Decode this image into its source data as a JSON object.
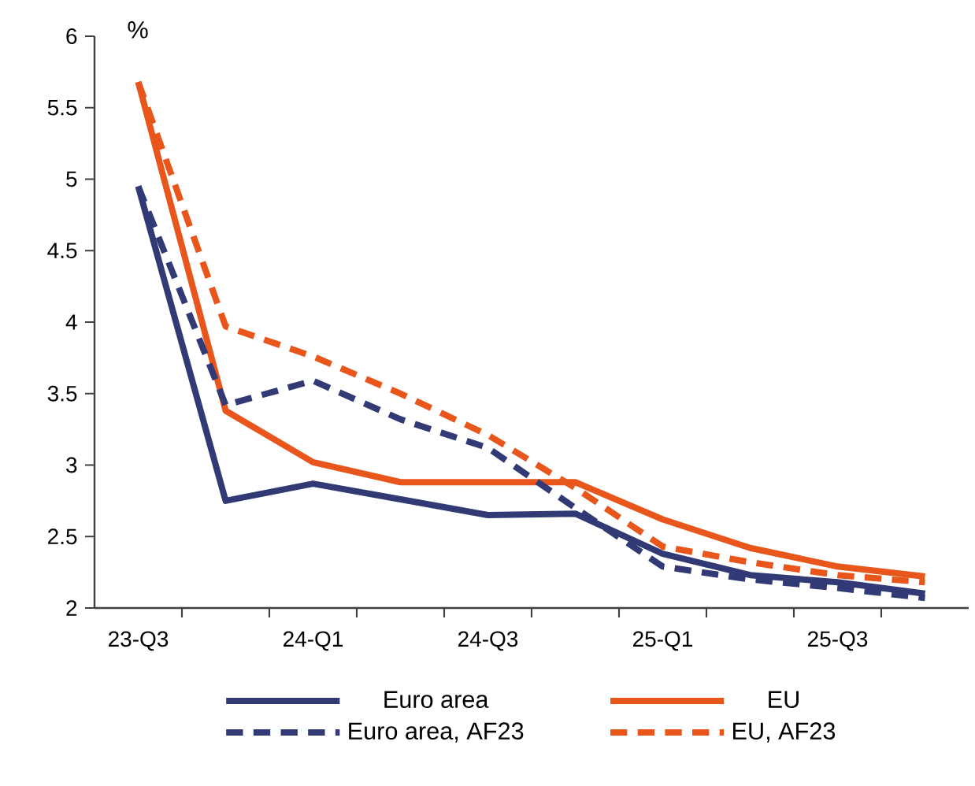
{
  "chart_data": {
    "type": "line",
    "ylabel": "%",
    "categories": [
      "23-Q3",
      null,
      "24-Q1",
      null,
      "24-Q3",
      null,
      "25-Q1",
      null,
      "25-Q3",
      null
    ],
    "series": [
      {
        "name": "Euro area",
        "color": "#323a75",
        "line_style": "solid",
        "values": [
          4.95,
          2.75,
          2.87,
          2.76,
          2.65,
          2.66,
          2.38,
          2.23,
          2.18,
          2.1
        ]
      },
      {
        "name": "EU",
        "color": "#e8561c",
        "line_style": "solid",
        "values": [
          5.68,
          3.38,
          3.02,
          2.88,
          2.88,
          2.88,
          2.62,
          2.42,
          2.29,
          2.22
        ]
      },
      {
        "name": "Euro area, AF23",
        "color": "#323a75",
        "line_style": "dashed",
        "values": [
          4.95,
          3.42,
          3.59,
          3.32,
          3.12,
          2.7,
          2.29,
          2.2,
          2.14,
          2.07
        ]
      },
      {
        "name": "EU, AF23",
        "color": "#e8561c",
        "line_style": "dashed",
        "values": [
          5.68,
          3.97,
          3.76,
          3.5,
          3.21,
          2.84,
          2.43,
          2.32,
          2.23,
          2.18
        ]
      }
    ],
    "ylim": [
      2,
      6
    ],
    "yticks": [
      2,
      2.5,
      3,
      3.5,
      4,
      4.5,
      5,
      5.5,
      6
    ],
    "legend": "bottom"
  }
}
